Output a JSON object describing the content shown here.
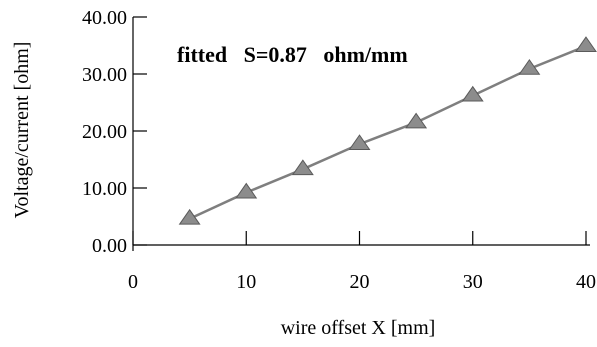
{
  "chart_data": {
    "type": "line",
    "title": "",
    "annotation": "fitted   S=0.87   ohm/mm",
    "xlabel": "wire offset  X [mm]",
    "ylabel": "Voltage/current [ohm]",
    "xlim": [
      0,
      40
    ],
    "ylim": [
      0,
      40
    ],
    "xticks": [
      0,
      10,
      20,
      30,
      40
    ],
    "yticks": [
      0,
      10,
      20,
      30,
      40
    ],
    "xtick_labels": [
      "0",
      "10",
      "20",
      "30",
      "40"
    ],
    "ytick_labels": [
      "0.00",
      "10.00",
      "20.00",
      "30.00",
      "40.00"
    ],
    "grid": false,
    "legend": "none",
    "series": [
      {
        "marker": "triangle",
        "color": "#7f7f7f",
        "x": [
          5,
          10,
          15,
          20,
          25,
          30,
          35,
          40
        ],
        "y": [
          4.6,
          9.2,
          13.3,
          17.7,
          21.5,
          26.2,
          30.9,
          34.9
        ]
      }
    ]
  }
}
